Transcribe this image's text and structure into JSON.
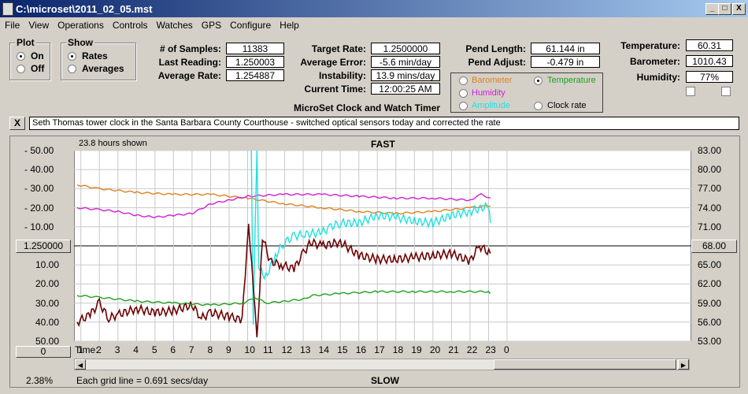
{
  "window": {
    "title": "C:\\microset\\2011_02_05.mst",
    "controls": {
      "minimize": "_",
      "maximize": "□",
      "close": "X"
    }
  },
  "menu": [
    "File",
    "View",
    "Operations",
    "Controls",
    "Watches",
    "GPS",
    "Configure",
    "Help"
  ],
  "plot_group": {
    "title": "Plot",
    "options": [
      "On",
      "Off"
    ],
    "selected": "On"
  },
  "show_group": {
    "title": "Show",
    "options": [
      "Rates",
      "Averages"
    ],
    "selected": "Rates"
  },
  "stats": {
    "samples_label": "# of Samples:",
    "samples": "11383",
    "last_label": "Last Reading:",
    "last": "1.250003",
    "avg_label": "Average Rate:",
    "avg": "1.254887",
    "target_label": "Target Rate:",
    "target": "1.2500000",
    "error_label": "Average Error:",
    "error": "-5.6 min/day",
    "instab_label": "Instability:",
    "instab": "13.9 mins/day",
    "time_label": "Current Time:",
    "time": "12:00:25 AM",
    "pendlen_label": "Pend Length:",
    "pendlen": "61.144 in",
    "pendadj_label": "Pend Adjust:",
    "pendadj": "-0.479 in",
    "temp_label": "Temperature:",
    "temp": "60.31",
    "baro_label": "Barometer:",
    "baro": "1010.43",
    "hum_label": "Humidity:",
    "hum": "77%"
  },
  "app_name": "MicroSet Clock and Watch Timer",
  "sensor_group": {
    "options": [
      {
        "label": "Barometer",
        "color": "#e08020",
        "selected": false
      },
      {
        "label": "Temperature",
        "color": "#20a020",
        "selected": true
      },
      {
        "label": "Humidity",
        "color": "#d020d0",
        "selected": false
      },
      {
        "label": "Amplitude",
        "color": "#20e0e0",
        "selected": false
      },
      {
        "label": "Clock rate",
        "color": "#000000",
        "selected": false
      }
    ]
  },
  "note": {
    "close": "X",
    "text": "Seth Thomas tower clock in the Santa Barbara County Courthouse - switched optical sensors today and corrected the rate"
  },
  "chart": {
    "hours_shown": "23.8 hours shown",
    "top_label": "FAST",
    "bottom_label": "SLOW",
    "center_button": "1.250000",
    "right_button": "68.00",
    "bottom_left_button": "0",
    "time_label": "Time:",
    "grid_note": "Each grid line = 0.691 secs/day",
    "percent": "2.38%"
  },
  "chart_data": {
    "type": "line",
    "left_ticks": [
      "- 50.00",
      "- 40.00",
      "- 30.00",
      "- 20.00",
      "- 10.00",
      "10.00",
      "20.00",
      "30.00",
      "40.00",
      "50.00"
    ],
    "right_ticks": [
      "83.00",
      "80.00",
      "77.00",
      "74.00",
      "71.00",
      "65.00",
      "62.00",
      "59.00",
      "56.00",
      "53.00"
    ],
    "x_ticks": [
      "1",
      "2",
      "3",
      "4",
      "5",
      "6",
      "7",
      "8",
      "9",
      "10",
      "11",
      "12",
      "13",
      "14",
      "15",
      "16",
      "17",
      "18",
      "19",
      "20",
      "21",
      "22",
      "23",
      "0"
    ],
    "xlim": [
      0.8,
      24
    ],
    "ylim": [
      -50,
      50
    ],
    "series": [
      {
        "color": "#e08020",
        "points": [
          [
            0.8,
            -32
          ],
          [
            2,
            -30
          ],
          [
            4,
            -28
          ],
          [
            6,
            -27
          ],
          [
            8,
            -27
          ],
          [
            10,
            -25
          ],
          [
            12,
            -22
          ],
          [
            14,
            -20
          ],
          [
            16,
            -18
          ],
          [
            18,
            -17
          ],
          [
            20,
            -18
          ],
          [
            22,
            -20
          ],
          [
            23.1,
            -21
          ]
        ]
      },
      {
        "color": "#d020d0",
        "points": [
          [
            0.8,
            -20
          ],
          [
            2,
            -19
          ],
          [
            3,
            -18
          ],
          [
            4,
            -16
          ],
          [
            5,
            -15
          ],
          [
            6,
            -16
          ],
          [
            7,
            -17
          ],
          [
            8,
            -22
          ],
          [
            9,
            -24
          ],
          [
            10,
            -26
          ],
          [
            12,
            -27
          ],
          [
            14,
            -27
          ],
          [
            16,
            -26
          ],
          [
            18,
            -25
          ],
          [
            20,
            -25
          ],
          [
            22,
            -24
          ],
          [
            22.6,
            -27
          ],
          [
            23.1,
            -25
          ]
        ]
      },
      {
        "color": "#20e0e0",
        "points": [
          [
            10.2,
            -50
          ],
          [
            10.3,
            40
          ],
          [
            10.5,
            -50
          ],
          [
            10.6,
            10
          ],
          [
            10.9,
            18
          ],
          [
            11.5,
            5
          ],
          [
            12,
            -2
          ],
          [
            12.5,
            -5
          ],
          [
            13,
            -6
          ],
          [
            14,
            -7
          ],
          [
            14.5,
            -10
          ],
          [
            15,
            -12
          ],
          [
            16,
            -12
          ],
          [
            17,
            -16
          ],
          [
            18,
            -15
          ],
          [
            19,
            -13
          ],
          [
            20,
            -12
          ],
          [
            21,
            -16
          ],
          [
            22,
            -18
          ],
          [
            23,
            -21
          ],
          [
            23.1,
            -12
          ]
        ]
      },
      {
        "color": "#6b0000",
        "points": [
          [
            0.8,
            40
          ],
          [
            1.5,
            36
          ],
          [
            2,
            30
          ],
          [
            2.5,
            38
          ],
          [
            3,
            36
          ],
          [
            4,
            33
          ],
          [
            5,
            35
          ],
          [
            6,
            34
          ],
          [
            7,
            31
          ],
          [
            7.5,
            38
          ],
          [
            8,
            35
          ],
          [
            9,
            37
          ],
          [
            9.7,
            39
          ],
          [
            10.05,
            -12
          ],
          [
            10.3,
            20
          ],
          [
            10.5,
            50
          ],
          [
            10.8,
            -5
          ],
          [
            11.2,
            8
          ],
          [
            11.8,
            10
          ],
          [
            12.5,
            12
          ],
          [
            13,
            4
          ],
          [
            13.4,
            -2
          ],
          [
            14,
            0
          ],
          [
            15,
            -2
          ],
          [
            16,
            5
          ],
          [
            17,
            7
          ],
          [
            18,
            7
          ],
          [
            19,
            6
          ],
          [
            20,
            5
          ],
          [
            21,
            4
          ],
          [
            22,
            8
          ],
          [
            22.5,
            0
          ],
          [
            23.1,
            4
          ]
        ]
      },
      {
        "color": "#20a020",
        "points": [
          [
            0.8,
            26
          ],
          [
            2,
            27
          ],
          [
            4,
            29
          ],
          [
            6,
            30
          ],
          [
            8,
            31
          ],
          [
            9.8,
            30
          ],
          [
            10.4,
            27
          ],
          [
            11,
            30
          ],
          [
            12,
            29
          ],
          [
            13,
            28
          ],
          [
            13.5,
            26
          ],
          [
            15,
            25
          ],
          [
            17,
            24
          ],
          [
            19,
            24
          ],
          [
            21,
            24
          ],
          [
            23,
            24
          ],
          [
            23.1,
            25
          ]
        ]
      }
    ]
  }
}
